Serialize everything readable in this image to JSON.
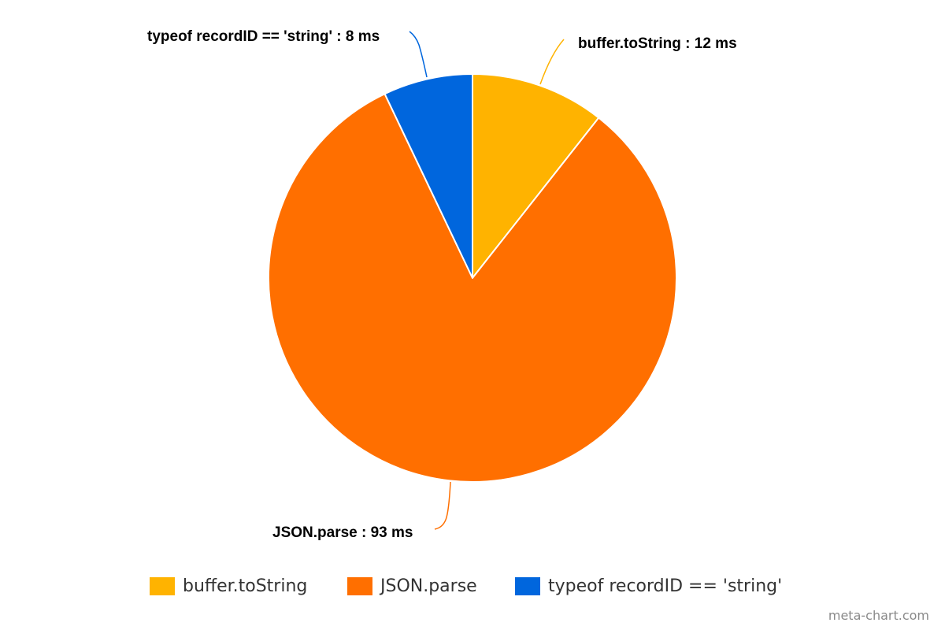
{
  "chart_data": {
    "type": "pie",
    "categories": [
      "buffer.toString",
      "JSON.parse",
      "typeof recordID == 'string'"
    ],
    "values": [
      12,
      93,
      8
    ],
    "unit": "ms",
    "colors": [
      "#FFB300",
      "#FF6F00",
      "#0066DD"
    ],
    "slice_labels": [
      "buffer.toString : 12 ms",
      "JSON.parse : 93 ms",
      "typeof recordID == 'string' : 8 ms"
    ],
    "legend": {
      "position": "bottom",
      "entries": [
        "buffer.toString",
        "JSON.parse",
        "typeof recordID == 'string'"
      ]
    }
  },
  "watermark": "meta-chart.com"
}
